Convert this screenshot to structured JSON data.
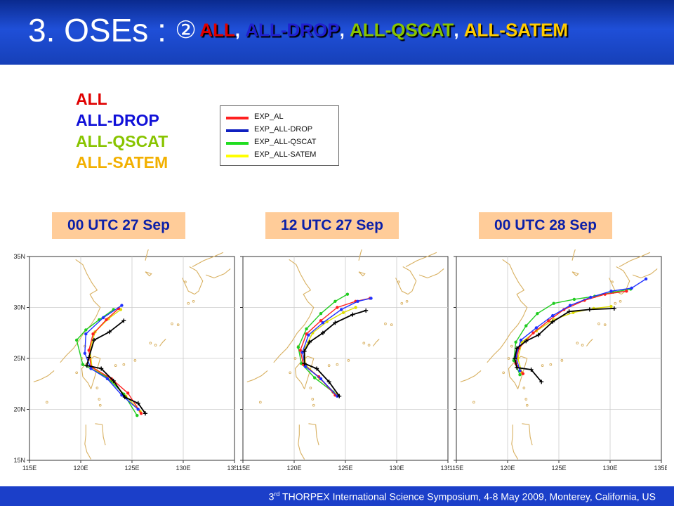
{
  "header": {
    "title_main": "3. OSEs :",
    "title_marker": "②",
    "title_experiments": [
      {
        "label": "ALL",
        "color": "#e00000"
      },
      {
        "label": "ALL-DROP",
        "color": "#2020d0"
      },
      {
        "label": "ALL-QSCAT",
        "color": "#88c400"
      },
      {
        "label": "ALL-SATEM",
        "color": "#ffcc00"
      }
    ],
    "title_separator": ","
  },
  "experiment_list": [
    {
      "label": "ALL",
      "color": "#e00000"
    },
    {
      "label": "ALL-DROP",
      "color": "#1010d8"
    },
    {
      "label": "ALL-QSCAT",
      "color": "#88c400"
    },
    {
      "label": "ALL-SATEM",
      "color": "#f2b000"
    }
  ],
  "legend": [
    {
      "label": "EXP_AL",
      "color": "#ff2020"
    },
    {
      "label": "EXP_ALL-DROP",
      "color": "#1020c0"
    },
    {
      "label": "EXP_ALL-QSCAT",
      "color": "#20dd20"
    },
    {
      "label": "EXP_ALL-SATEM",
      "color": "#ffff00"
    }
  ],
  "time_labels": [
    "00 UTC 27 Sep",
    "12 UTC 27 Sep",
    "00 UTC 28 Sep"
  ],
  "map_axes": {
    "lat_ticks": [
      "35N",
      "30N",
      "25N",
      "20N",
      "15N"
    ],
    "lon_ticks": [
      "115E",
      "120E",
      "125E",
      "130E",
      "135E"
    ],
    "lat_values": [
      35,
      30,
      25,
      20,
      15
    ],
    "lon_values": [
      115,
      120,
      125,
      130,
      135
    ]
  },
  "track_colors": {
    "best_track": "#000000",
    "exp_al": "#ff2020",
    "exp_drop": "#2030ff",
    "exp_qscat": "#20cc20",
    "exp_satem": "#dddd00",
    "land": "#d8b060"
  },
  "panels": [
    {
      "best_track": [
        [
          126.3,
          19.6
        ],
        [
          125.6,
          20.6
        ],
        [
          124.3,
          21.2
        ],
        [
          123.2,
          22.8
        ],
        [
          122.0,
          24.0
        ],
        [
          120.6,
          24.3
        ],
        [
          120.8,
          25.1
        ],
        [
          121.3,
          26.8
        ],
        [
          122.8,
          27.6
        ],
        [
          124.2,
          28.7
        ]
      ],
      "exp_al": [
        [
          125.9,
          19.6
        ],
        [
          124.6,
          21.6
        ],
        [
          123.0,
          23.0
        ],
        [
          121.0,
          24.2
        ],
        [
          120.8,
          25.8
        ],
        [
          121.2,
          27.4
        ],
        [
          122.5,
          28.8
        ],
        [
          123.7,
          29.9
        ]
      ],
      "exp_drop": [
        [
          125.6,
          20.0
        ],
        [
          124.0,
          21.4
        ],
        [
          122.6,
          23.0
        ],
        [
          121.0,
          24.0
        ],
        [
          120.4,
          25.5
        ],
        [
          120.5,
          27.4
        ],
        [
          122.2,
          29.0
        ],
        [
          124.0,
          30.2
        ]
      ],
      "exp_qscat": [
        [
          125.5,
          19.4
        ],
        [
          124.2,
          21.5
        ],
        [
          122.5,
          23.2
        ],
        [
          120.2,
          24.4
        ],
        [
          119.6,
          26.8
        ],
        [
          120.5,
          27.8
        ],
        [
          121.8,
          28.8
        ],
        [
          123.2,
          29.8
        ]
      ],
      "exp_satem": [
        [
          125.8,
          19.8
        ],
        [
          124.4,
          21.3
        ],
        [
          122.9,
          22.9
        ],
        [
          121.1,
          24.1
        ],
        [
          120.9,
          25.9
        ],
        [
          121.4,
          27.6
        ],
        [
          122.7,
          28.9
        ],
        [
          123.9,
          29.8
        ]
      ]
    },
    {
      "best_track": [
        [
          124.4,
          21.3
        ],
        [
          123.4,
          22.7
        ],
        [
          122.2,
          24.0
        ],
        [
          121.0,
          24.5
        ],
        [
          121.0,
          25.7
        ],
        [
          121.5,
          26.6
        ],
        [
          122.8,
          27.5
        ],
        [
          124.0,
          28.5
        ],
        [
          125.7,
          29.3
        ],
        [
          127.0,
          29.7
        ]
      ],
      "exp_al": [
        [
          124.0,
          21.4
        ],
        [
          122.4,
          23.2
        ],
        [
          120.9,
          24.4
        ],
        [
          120.6,
          25.8
        ],
        [
          121.2,
          27.4
        ],
        [
          122.6,
          28.7
        ],
        [
          124.2,
          30.0
        ],
        [
          126.0,
          30.6
        ],
        [
          127.4,
          30.9
        ]
      ],
      "exp_drop": [
        [
          124.2,
          21.3
        ],
        [
          122.6,
          23.0
        ],
        [
          121.1,
          24.2
        ],
        [
          120.8,
          25.6
        ],
        [
          121.4,
          27.3
        ],
        [
          122.8,
          28.5
        ],
        [
          124.6,
          29.8
        ],
        [
          126.2,
          30.6
        ],
        [
          127.5,
          30.9
        ]
      ],
      "exp_qscat": [
        [
          123.8,
          21.7
        ],
        [
          122.0,
          23.1
        ],
        [
          120.7,
          24.5
        ],
        [
          120.4,
          26.1
        ],
        [
          121.2,
          27.9
        ],
        [
          122.6,
          29.4
        ],
        [
          124.0,
          30.6
        ],
        [
          125.2,
          31.3
        ]
      ],
      "exp_satem": [
        [
          124.1,
          21.5
        ],
        [
          122.5,
          23.0
        ],
        [
          121.1,
          24.4
        ],
        [
          121.0,
          25.9
        ],
        [
          121.8,
          27.5
        ],
        [
          123.2,
          28.6
        ],
        [
          124.8,
          29.5
        ],
        [
          126.0,
          30.0
        ]
      ]
    },
    {
      "best_track": [
        [
          123.3,
          22.7
        ],
        [
          122.3,
          23.9
        ],
        [
          120.9,
          24.1
        ],
        [
          120.7,
          25.0
        ],
        [
          120.9,
          26.0
        ],
        [
          121.8,
          26.7
        ],
        [
          123.0,
          27.3
        ],
        [
          124.4,
          28.6
        ],
        [
          126.0,
          29.6
        ],
        [
          128.0,
          29.8
        ],
        [
          130.4,
          29.9
        ]
      ],
      "exp_al": [
        [
          121.5,
          23.5
        ],
        [
          120.8,
          24.5
        ],
        [
          121.1,
          26.0
        ],
        [
          122.5,
          27.5
        ],
        [
          124.0,
          28.7
        ],
        [
          125.5,
          29.8
        ],
        [
          127.5,
          30.7
        ],
        [
          129.5,
          31.3
        ],
        [
          131.6,
          31.6
        ]
      ],
      "exp_drop": [
        [
          121.2,
          23.8
        ],
        [
          120.8,
          25.2
        ],
        [
          121.3,
          26.8
        ],
        [
          122.8,
          28.0
        ],
        [
          124.4,
          29.2
        ],
        [
          126.1,
          30.2
        ],
        [
          128.1,
          31.0
        ],
        [
          130.1,
          31.6
        ],
        [
          132.1,
          31.9
        ],
        [
          133.5,
          32.8
        ]
      ],
      "exp_qscat": [
        [
          121.2,
          23.4
        ],
        [
          120.6,
          24.8
        ],
        [
          120.8,
          26.6
        ],
        [
          121.8,
          28.2
        ],
        [
          122.9,
          29.4
        ],
        [
          124.5,
          30.4
        ],
        [
          126.5,
          30.8
        ],
        [
          128.5,
          31.1
        ],
        [
          130.3,
          31.5
        ],
        [
          132.0,
          31.8
        ]
      ],
      "exp_satem": [
        [
          121.4,
          23.6
        ],
        [
          121.0,
          25.0
        ],
        [
          121.4,
          26.6
        ],
        [
          122.8,
          27.7
        ],
        [
          124.5,
          28.8
        ],
        [
          126.4,
          29.5
        ],
        [
          128.4,
          29.9
        ],
        [
          130.1,
          30.1
        ]
      ]
    }
  ],
  "footer": {
    "ordinal_number": "3",
    "ordinal_suffix": "rd",
    "text": " THORPEX International Science Symposium, 4-8 May 2009, Monterey, California, US"
  }
}
